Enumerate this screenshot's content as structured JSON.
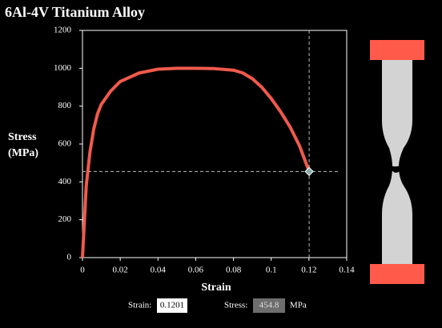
{
  "chart_data": {
    "type": "line",
    "title": "6Al-4V Titanium Alloy",
    "xlabel": "Strain",
    "ylabel": [
      "Stress",
      "(MPa)"
    ],
    "x": [
      0,
      0.002,
      0.004,
      0.006,
      0.008,
      0.01,
      0.015,
      0.02,
      0.03,
      0.04,
      0.05,
      0.06,
      0.07,
      0.08,
      0.085,
      0.09,
      0.095,
      0.1,
      0.105,
      0.11,
      0.115,
      0.1201
    ],
    "values": [
      0,
      380,
      560,
      680,
      760,
      810,
      880,
      930,
      975,
      995,
      1000,
      1000,
      998,
      990,
      975,
      945,
      900,
      840,
      770,
      690,
      590,
      454.8
    ],
    "color": "#f05a4c",
    "xlim": [
      0,
      0.14
    ],
    "xticks": [
      0,
      0.02,
      0.04,
      0.06,
      0.08,
      0.1,
      0.12,
      0.14
    ],
    "ylim": [
      0,
      1200
    ],
    "yticks": [
      0,
      200,
      400,
      600,
      800,
      1000,
      1200
    ],
    "grid": false
  },
  "readout": {
    "strain_label": "Strain:",
    "strain": 0.1201,
    "stress_label": "Stress:",
    "stress": 454.8,
    "unit": "MPa"
  }
}
